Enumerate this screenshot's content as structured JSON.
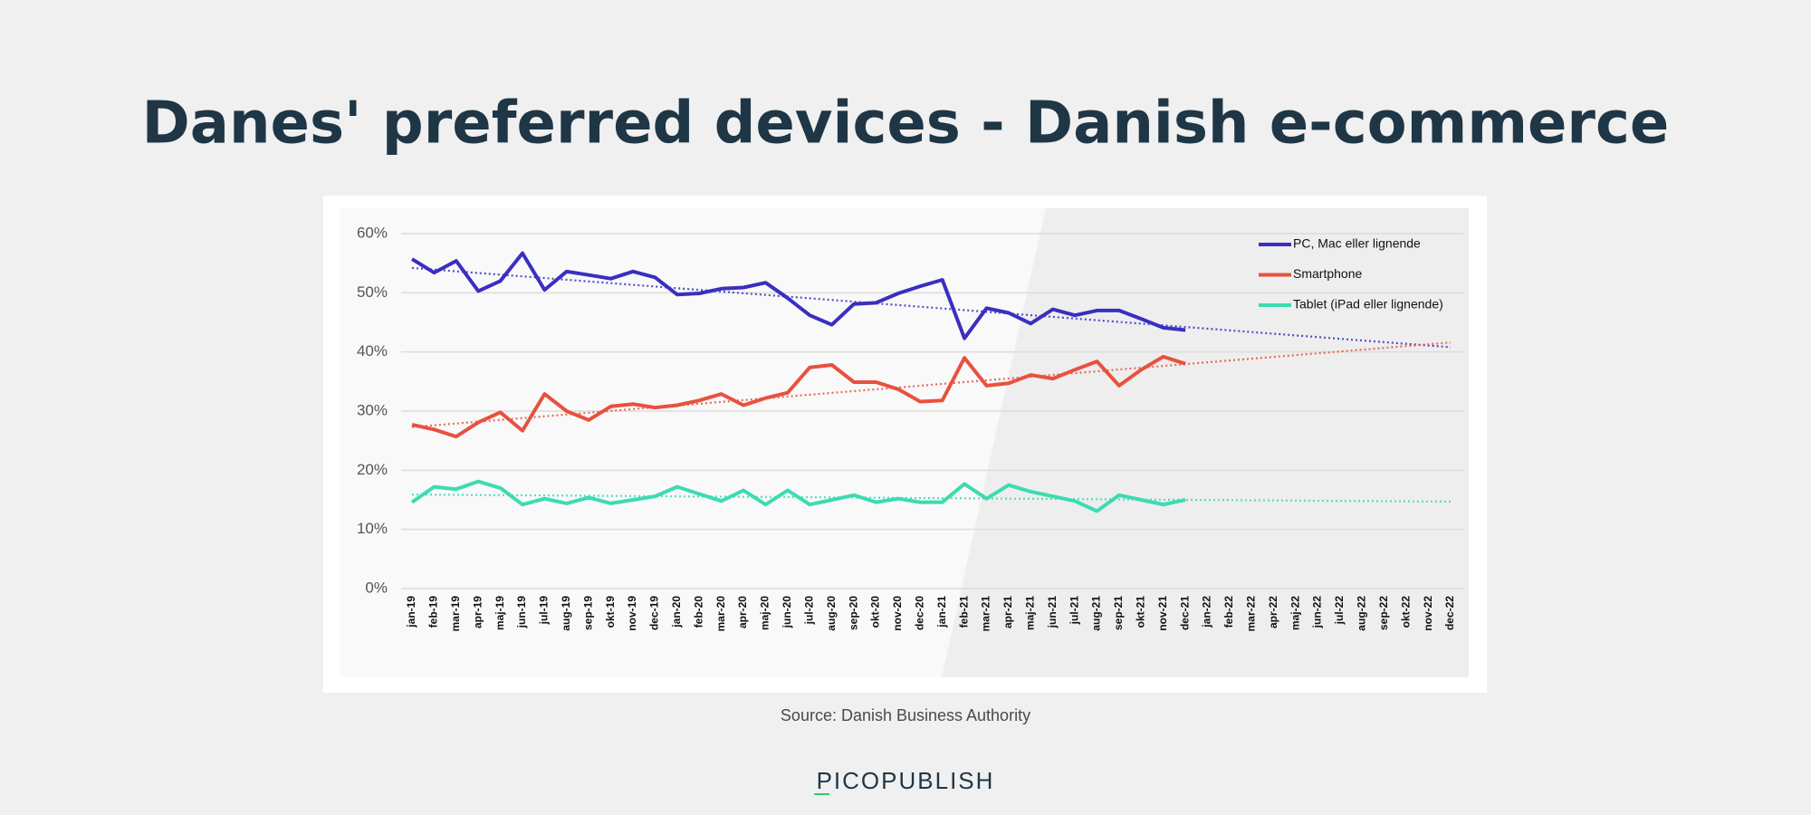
{
  "chart_data": {
    "type": "line",
    "title": "Danes' preferred devices - Danish e-commerce",
    "source": "Source: Danish Business Authority",
    "brand": "PICOPUBLISH",
    "categories": [
      "jan-19",
      "feb-19",
      "mar-19",
      "apr-19",
      "maj-19",
      "jun-19",
      "jul-19",
      "aug-19",
      "sep-19",
      "okt-19",
      "nov-19",
      "dec-19",
      "jan-20",
      "feb-20",
      "mar-20",
      "apr-20",
      "maj-20",
      "jun-20",
      "jul-20",
      "aug-20",
      "sep-20",
      "okt-20",
      "nov-20",
      "dec-20",
      "jan-21",
      "feb-21",
      "mar-21",
      "apr-21",
      "maj-21",
      "jun-21",
      "jul-21",
      "aug-21",
      "sep-21",
      "okt-21",
      "nov-21",
      "dec-21",
      "jan-22",
      "feb-22",
      "mar-22",
      "apr-22",
      "maj-22",
      "jun-22",
      "jul-22",
      "aug-22",
      "sep-22",
      "okt-22",
      "nov-22",
      "dec-22"
    ],
    "series": [
      {
        "name": "PC, Mac eller lignende",
        "color": "#3a2fbf",
        "values": [
          55.7,
          53.4,
          55.4,
          50.3,
          52.0,
          56.7,
          50.5,
          53.6,
          53.0,
          52.4,
          53.6,
          52.6,
          49.7,
          49.9,
          50.7,
          50.9,
          51.7,
          49.1,
          46.2,
          44.6,
          48.1,
          48.3,
          49.9,
          51.1,
          52.2,
          42.3,
          47.4,
          46.6,
          44.8,
          47.2,
          46.2,
          47.0,
          47.0,
          45.6,
          44.1,
          43.7,
          null,
          null,
          null,
          null,
          null,
          null,
          null,
          null,
          null,
          null,
          null,
          null
        ],
        "trend": [
          54.2,
          40.8
        ]
      },
      {
        "name": "Smartphone",
        "color": "#e8513f",
        "values": [
          27.7,
          26.9,
          25.7,
          28.1,
          29.8,
          26.7,
          32.9,
          30.0,
          28.5,
          30.8,
          31.2,
          30.6,
          31.0,
          31.8,
          32.9,
          31.0,
          32.2,
          33.1,
          37.4,
          37.8,
          34.9,
          34.9,
          33.7,
          31.6,
          31.8,
          39.0,
          34.3,
          34.7,
          36.1,
          35.5,
          37.0,
          38.4,
          34.3,
          37.0,
          39.2,
          38.0,
          null,
          null,
          null,
          null,
          null,
          null,
          null,
          null,
          null,
          null,
          null,
          null
        ],
        "trend": [
          27.3,
          41.6
        ]
      },
      {
        "name": "Tablet (iPad eller lignende)",
        "color": "#3ddbb0",
        "values": [
          14.6,
          17.2,
          16.8,
          18.1,
          17.0,
          14.2,
          15.2,
          14.4,
          15.4,
          14.4,
          15.0,
          15.6,
          17.2,
          16.0,
          14.8,
          16.6,
          14.2,
          16.6,
          14.2,
          15.0,
          15.8,
          14.6,
          15.2,
          14.6,
          14.6,
          17.7,
          15.2,
          17.5,
          16.4,
          15.6,
          14.8,
          13.1,
          15.8,
          15.0,
          14.2,
          15.0,
          null,
          null,
          null,
          null,
          null,
          null,
          null,
          null,
          null,
          null,
          null,
          null
        ],
        "trend": [
          15.9,
          14.7
        ]
      }
    ],
    "ylim": [
      0,
      60
    ],
    "yticks": [
      {
        "value": 0,
        "label": "0%"
      },
      {
        "value": 10,
        "label": "10%"
      },
      {
        "value": 20,
        "label": "20%"
      },
      {
        "value": 30,
        "label": "30%"
      },
      {
        "value": 40,
        "label": "40%"
      },
      {
        "value": 50,
        "label": "50%"
      },
      {
        "value": 60,
        "label": "60%"
      }
    ],
    "grid": true,
    "legend": "upper right"
  }
}
